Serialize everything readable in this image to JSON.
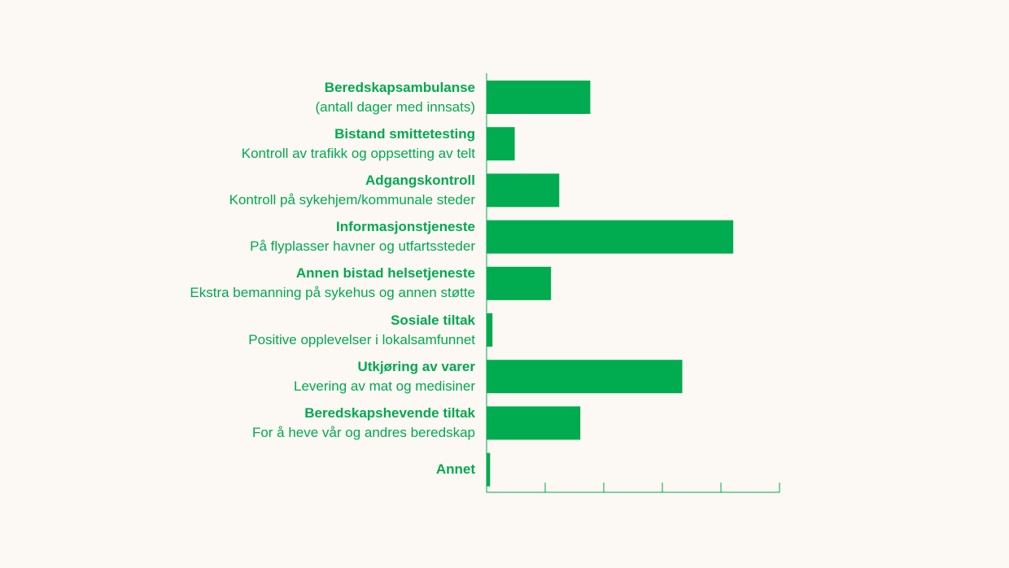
{
  "colors": {
    "background": "#fcf8f4",
    "bar": "#00ac4f",
    "text": "#00a94f",
    "axis": "#00a94f"
  },
  "chart_data": {
    "type": "bar",
    "orientation": "horizontal",
    "title": "",
    "xlabel": "",
    "ylabel": "",
    "xlim": [
      0,
      5
    ],
    "x_tick_count": 6,
    "x_tick_labels_shown": false,
    "grid": false,
    "legend": "none",
    "categories": [
      {
        "label": "Beredskapsambulanse",
        "sublabel": "(antall dager med innsats)"
      },
      {
        "label": "Bistand smittetesting",
        "sublabel": "Kontroll av trafikk og oppsetting av telt"
      },
      {
        "label": "Adgangskontroll",
        "sublabel": "Kontroll på sykehjem/kommunale steder"
      },
      {
        "label": "Informasjonstjeneste",
        "sublabel": "På flyplasser havner og utfartssteder"
      },
      {
        "label": "Annen bistad helsetjeneste",
        "sublabel": "Ekstra bemanning på sykehus og annen støtte"
      },
      {
        "label": "Sosiale tiltak",
        "sublabel": "Positive opplevelser i lokalsamfunnet"
      },
      {
        "label": "Utkjøring av varer",
        "sublabel": "Levering av mat og medisiner"
      },
      {
        "label": "Beredskapshevende tiltak",
        "sublabel": "For å heve vår og andres beredskap"
      },
      {
        "label": "Annet",
        "sublabel": ""
      }
    ],
    "values": [
      1.77,
      0.48,
      1.24,
      4.21,
      1.1,
      0.1,
      3.34,
      1.6,
      0.06
    ]
  }
}
